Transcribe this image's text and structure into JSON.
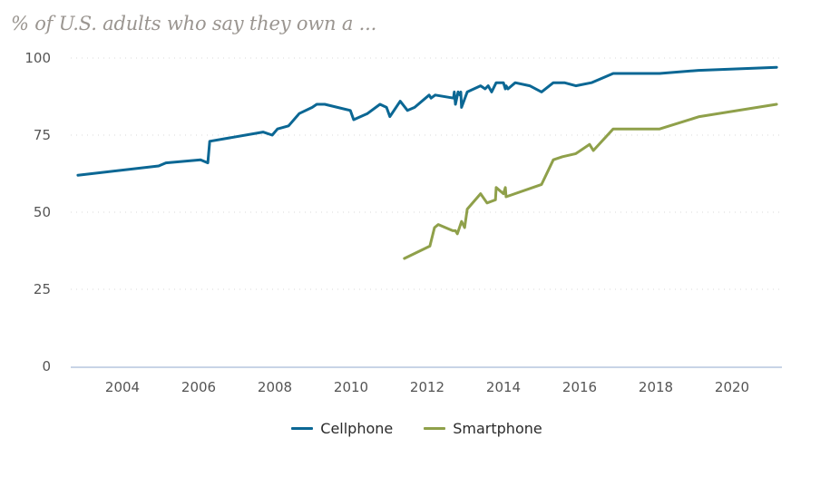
{
  "chart_data": {
    "type": "line",
    "title": "",
    "subtitle": "% of U.S. adults who say they own a ...",
    "xlabel": "",
    "ylabel": "",
    "xlim": [
      2002.5,
      2021.3
    ],
    "ylim": [
      0,
      100
    ],
    "grid": true,
    "legend_position": "bottom-center",
    "x_ticks": [
      2004,
      2006,
      2008,
      2010,
      2012,
      2014,
      2016,
      2018,
      2020
    ],
    "x_tick_labels": [
      "2004",
      "2006",
      "2008",
      "2010",
      "2012",
      "2014",
      "2016",
      "2018",
      "2020"
    ],
    "y_ticks": [
      0,
      25,
      50,
      75,
      100
    ],
    "y_tick_labels": [
      "0",
      "25",
      "50",
      "75",
      "100"
    ],
    "series": [
      {
        "name": "Cellphone",
        "color": "#0b6794",
        "points": [
          [
            2002.83,
            62
          ],
          [
            2004.95,
            65
          ],
          [
            2005.14,
            66
          ],
          [
            2006.05,
            67
          ],
          [
            2006.24,
            66
          ],
          [
            2006.29,
            73
          ],
          [
            2007.69,
            76
          ],
          [
            2007.93,
            75
          ],
          [
            2008.07,
            77
          ],
          [
            2008.36,
            78
          ],
          [
            2008.64,
            82
          ],
          [
            2008.98,
            84
          ],
          [
            2009.1,
            85
          ],
          [
            2009.31,
            85
          ],
          [
            2009.98,
            83
          ],
          [
            2010.07,
            80
          ],
          [
            2010.43,
            82
          ],
          [
            2010.76,
            85
          ],
          [
            2010.93,
            84
          ],
          [
            2011.02,
            81
          ],
          [
            2011.29,
            86
          ],
          [
            2011.48,
            83
          ],
          [
            2011.67,
            84
          ],
          [
            2012.05,
            88
          ],
          [
            2012.1,
            87
          ],
          [
            2012.21,
            88
          ],
          [
            2012.69,
            87
          ],
          [
            2012.71,
            89
          ],
          [
            2012.74,
            85
          ],
          [
            2012.81,
            89
          ],
          [
            2012.86,
            88
          ],
          [
            2012.88,
            89
          ],
          [
            2012.9,
            84
          ],
          [
            2013.05,
            89
          ],
          [
            2013.4,
            91
          ],
          [
            2013.52,
            90
          ],
          [
            2013.6,
            91
          ],
          [
            2013.69,
            89
          ],
          [
            2013.81,
            92
          ],
          [
            2014.0,
            92
          ],
          [
            2014.05,
            90
          ],
          [
            2014.07,
            91
          ],
          [
            2014.12,
            90
          ],
          [
            2014.31,
            92
          ],
          [
            2014.69,
            91
          ],
          [
            2015.0,
            89
          ],
          [
            2015.31,
            92
          ],
          [
            2015.6,
            92
          ],
          [
            2015.9,
            91
          ],
          [
            2016.31,
            92
          ],
          [
            2016.88,
            95
          ],
          [
            2018.1,
            95
          ],
          [
            2019.12,
            96
          ],
          [
            2021.17,
            97
          ]
        ]
      },
      {
        "name": "Smartphone",
        "color": "#8fa04a",
        "points": [
          [
            2011.4,
            35
          ],
          [
            2012.07,
            39
          ],
          [
            2012.19,
            45
          ],
          [
            2012.29,
            46
          ],
          [
            2012.67,
            44
          ],
          [
            2012.74,
            44
          ],
          [
            2012.79,
            43
          ],
          [
            2012.9,
            47
          ],
          [
            2012.98,
            45
          ],
          [
            2013.05,
            51
          ],
          [
            2013.4,
            56
          ],
          [
            2013.57,
            53
          ],
          [
            2013.79,
            54
          ],
          [
            2013.81,
            58
          ],
          [
            2014.0,
            56
          ],
          [
            2014.05,
            58
          ],
          [
            2014.07,
            55
          ],
          [
            2015.0,
            59
          ],
          [
            2015.31,
            67
          ],
          [
            2015.55,
            68
          ],
          [
            2015.9,
            69
          ],
          [
            2016.26,
            72
          ],
          [
            2016.36,
            70
          ],
          [
            2016.88,
            77
          ],
          [
            2018.1,
            77
          ],
          [
            2019.14,
            81
          ],
          [
            2021.17,
            85
          ]
        ]
      }
    ]
  },
  "colors": {
    "grid": "#d8d8d8",
    "axis": "#c8d4e6",
    "tick_text": "#555555",
    "subtitle": "#9a9590"
  }
}
